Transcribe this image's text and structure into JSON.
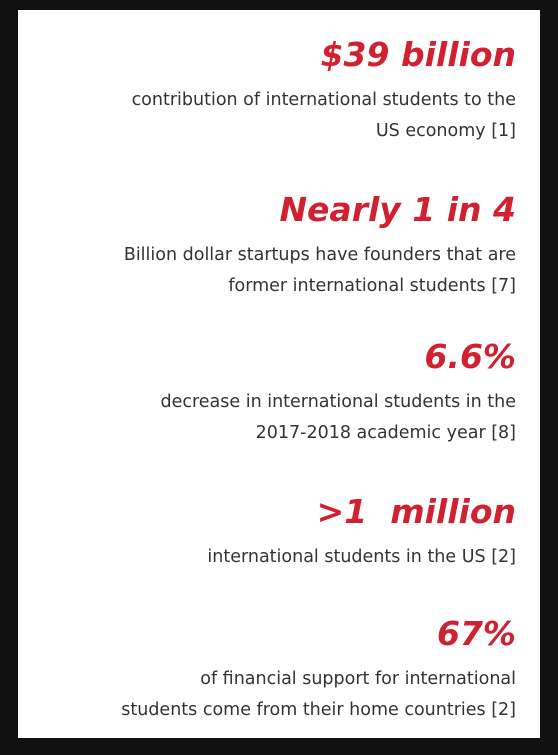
{
  "stats": [
    {
      "headline": "$39 billion",
      "lines": [
        "contribution of international students to the",
        "US economy [1]"
      ]
    },
    {
      "headline": "Nearly 1 in 4",
      "lines": [
        "Billion dollar startups have founders that are",
        "former international students [7]"
      ]
    },
    {
      "headline": "6.6%",
      "lines": [
        "decrease in international students in the",
        "2017-2018 academic year [8]"
      ]
    },
    {
      "headline": ">1  million",
      "lines": [
        "international students in the US [2]"
      ]
    },
    {
      "headline": "67%",
      "lines": [
        "of financial support for international",
        "students come from their home countries [2]"
      ]
    }
  ]
}
